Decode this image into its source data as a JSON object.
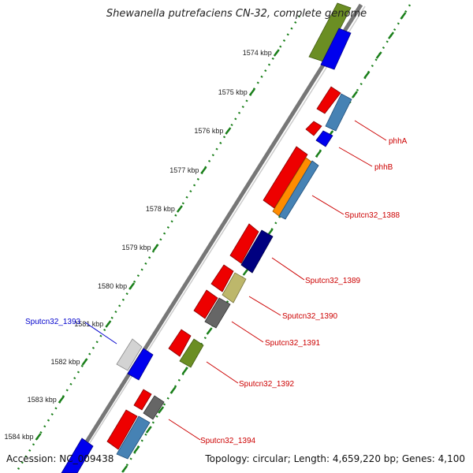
{
  "title": "Shewanella putrefaciens CN-32, complete genome",
  "footer": {
    "accession": "Accession: NC_009438",
    "topology": "Topology: circular; Length: 4,659,220 bp; Genes: 4,100"
  },
  "colors": {
    "backbone": "#808080",
    "ticks": "#1a7f1a",
    "label_red": "#cc0000",
    "label_blue": "#0000cc"
  },
  "scale": {
    "unit": "kbp",
    "ticks": [
      "1574 kbp",
      "1575 kbp",
      "1576 kbp",
      "1577 kbp",
      "1578 kbp",
      "1579 kbp",
      "1580 kbp",
      "1581 kbp",
      "1582 kbp",
      "1583 kbp",
      "1584 kbp"
    ]
  },
  "features": [
    {
      "name": "phhA",
      "color": "#cc0000"
    },
    {
      "name": "phhB",
      "color": "#cc0000"
    },
    {
      "name": "Sputcn32_1388",
      "color": "#cc0000"
    },
    {
      "name": "Sputcn32_1389",
      "color": "#cc0000"
    },
    {
      "name": "Sputcn32_1390",
      "color": "#cc0000"
    },
    {
      "name": "Sputcn32_1391",
      "color": "#cc0000"
    },
    {
      "name": "Sputcn32_1392",
      "color": "#cc0000"
    },
    {
      "name": "Sputcn32_1393",
      "color": "#0000cc"
    },
    {
      "name": "Sputcn32_1394",
      "color": "#cc0000"
    }
  ]
}
